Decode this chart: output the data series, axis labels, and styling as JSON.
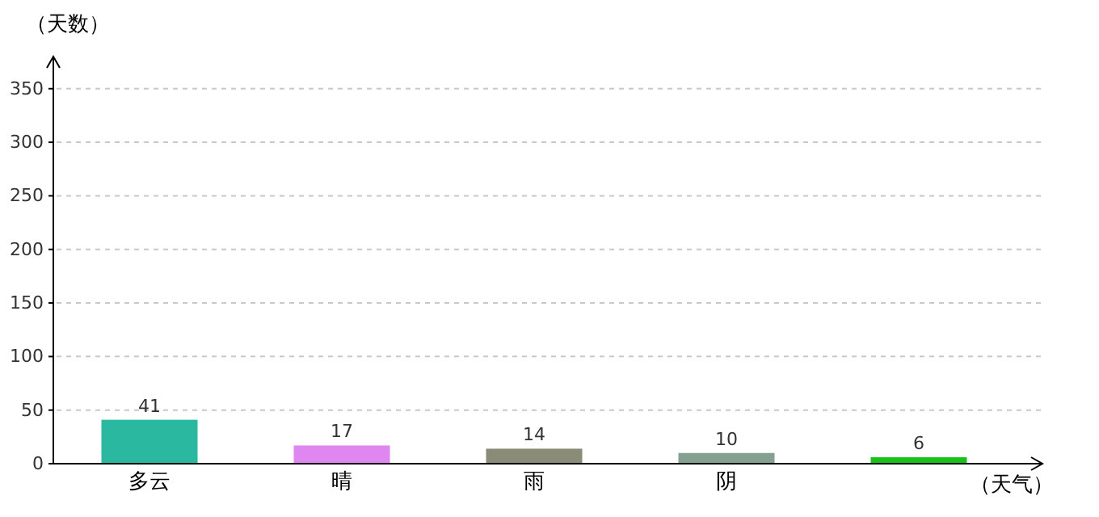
{
  "chart_data": {
    "type": "bar",
    "ylabel": "（天数）",
    "xlabel": "（天气）",
    "categories": [
      "多云",
      "晴",
      "雨",
      "阴",
      null
    ],
    "values": [
      41,
      17,
      14,
      10,
      6
    ],
    "colors": [
      "#2bb8a0",
      "#e086f0",
      "#8a8c78",
      "#84a090",
      "#18c018"
    ],
    "ylim": [
      0,
      380
    ],
    "yticks": [
      0,
      50,
      100,
      150,
      200,
      250,
      300,
      350
    ],
    "grid": "y",
    "data_labels": true
  }
}
